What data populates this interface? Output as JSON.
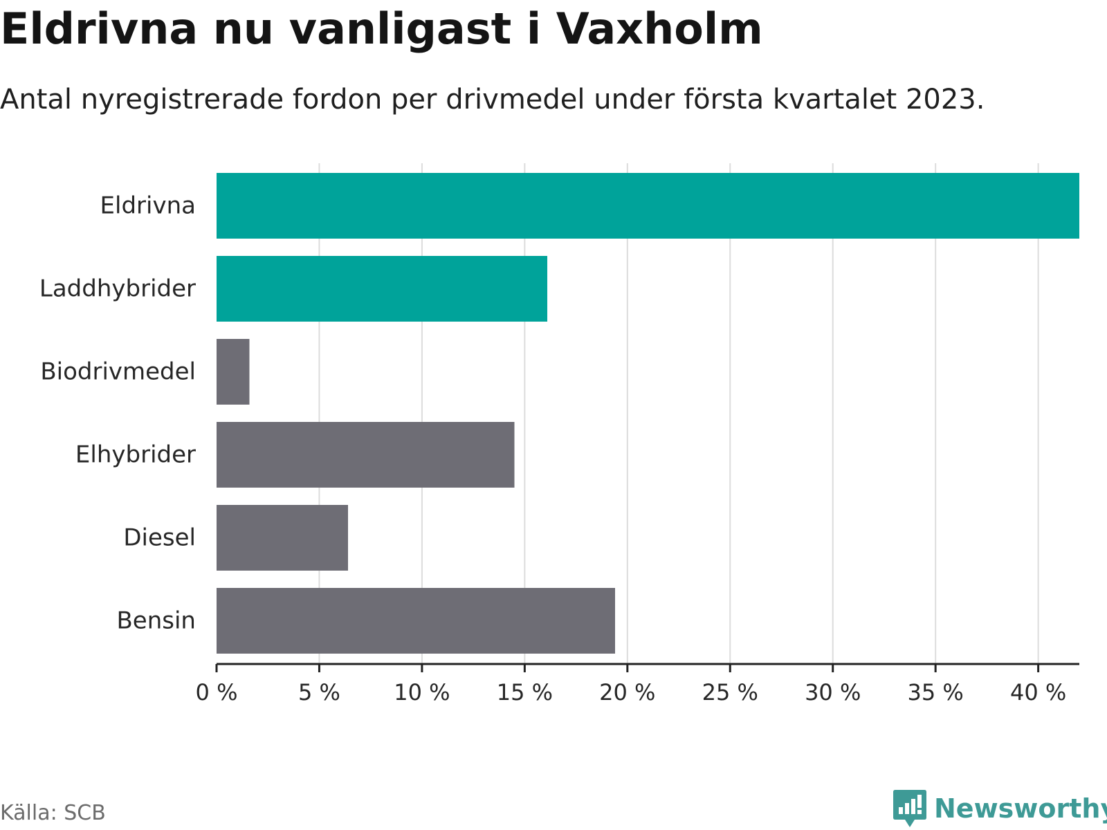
{
  "chart_data": {
    "type": "bar",
    "orientation": "horizontal",
    "title": "Eldrivna nu vanligast i Vaxholm",
    "subtitle": "Antal nyregistrerade fordon per drivmedel under första kvartalet 2023.",
    "categories": [
      "Eldrivna",
      "Laddhybrider",
      "Biodrivmedel",
      "Elhybrider",
      "Diesel",
      "Bensin"
    ],
    "values": [
      42.0,
      16.1,
      1.6,
      14.5,
      6.4,
      19.4
    ],
    "highlighted": [
      true,
      true,
      false,
      false,
      false,
      false
    ],
    "unit": "%",
    "xlim": [
      0,
      42
    ],
    "xticks": [
      0,
      5,
      10,
      15,
      20,
      25,
      30,
      35,
      40
    ],
    "tick_labels": [
      "0 %",
      "5 %",
      "10 %",
      "15 %",
      "20 %",
      "25 %",
      "30 %",
      "35 %",
      "40 %"
    ],
    "grid": true,
    "xlabel": "",
    "ylabel": ""
  },
  "colors": {
    "highlight": "#00a39a",
    "default": "#6e6d75",
    "grid": "#dcdcdc",
    "axis": "#222222",
    "brand": "#3e9a96"
  },
  "footer": {
    "source": "Källa: SCB",
    "brand": "Newsworthy",
    "brand_icon": "newsworthy-logo-icon"
  }
}
